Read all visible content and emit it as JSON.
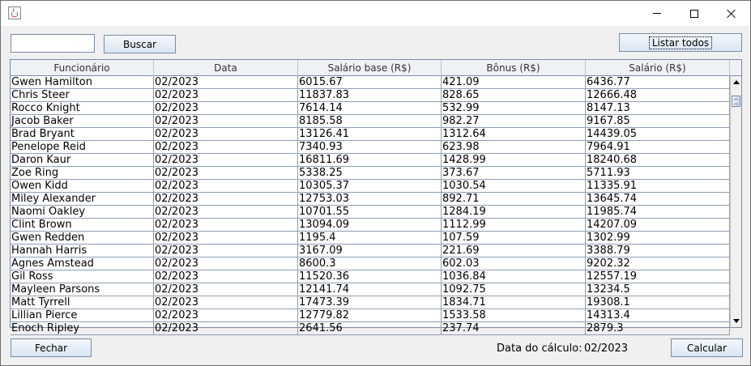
{
  "titlebar": {
    "app_icon": "java-cup-icon",
    "minimize_icon": "minimize-icon",
    "maximize_icon": "maximize-icon",
    "close_icon": "close-icon"
  },
  "toolbar": {
    "search_value": "",
    "search_label": "Buscar",
    "list_all_label": "Listar todos"
  },
  "table": {
    "columns": [
      "Funcionário",
      "Data",
      "Salário base (R$)",
      "Bônus (R$)",
      "Salário (R$)"
    ],
    "rows": [
      [
        "Gwen Hamilton",
        "02/2023",
        "6015.67",
        "421.09",
        "6436.77"
      ],
      [
        "Chris Steer",
        "02/2023",
        "11837.83",
        "828.65",
        "12666.48"
      ],
      [
        "Rocco Knight",
        "02/2023",
        "7614.14",
        "532.99",
        "8147.13"
      ],
      [
        "Jacob Baker",
        "02/2023",
        "8185.58",
        "982.27",
        "9167.85"
      ],
      [
        "Brad Bryant",
        "02/2023",
        "13126.41",
        "1312.64",
        "14439.05"
      ],
      [
        "Penelope Reid",
        "02/2023",
        "7340.93",
        "623.98",
        "7964.91"
      ],
      [
        "Daron Kaur",
        "02/2023",
        "16811.69",
        "1428.99",
        "18240.68"
      ],
      [
        "Zoe Ring",
        "02/2023",
        "5338.25",
        "373.67",
        "5711.93"
      ],
      [
        "Owen Kidd",
        "02/2023",
        "10305.37",
        "1030.54",
        "11335.91"
      ],
      [
        "Miley Alexander",
        "02/2023",
        "12753.03",
        "892.71",
        "13645.74"
      ],
      [
        "Naomi Oakley",
        "02/2023",
        "10701.55",
        "1284.19",
        "11985.74"
      ],
      [
        "Clint Brown",
        "02/2023",
        "13094.09",
        "1112.99",
        "14207.09"
      ],
      [
        "Gwen Redden",
        "02/2023",
        "1195.4",
        "107.59",
        "1302.99"
      ],
      [
        "Hannah Harris",
        "02/2023",
        "3167.09",
        "221.69",
        "3388.79"
      ],
      [
        "Agnes Amstead",
        "02/2023",
        "8600.3",
        "602.03",
        "9202.32"
      ],
      [
        "Gil Ross",
        "02/2023",
        "11520.36",
        "1036.84",
        "12557.19"
      ],
      [
        "Mayleen Parsons",
        "02/2023",
        "12141.74",
        "1092.75",
        "13234.5"
      ],
      [
        "Matt Tyrrell",
        "02/2023",
        "17473.39",
        "1834.71",
        "19308.1"
      ],
      [
        "Lillian Pierce",
        "02/2023",
        "12779.82",
        "1533.58",
        "14313.4"
      ],
      [
        "Enoch Ripley",
        "02/2023",
        "2641.56",
        "237.74",
        "2879.3"
      ]
    ]
  },
  "footer": {
    "close_label": "Fechar",
    "calc_date_label": "Data do cálculo:",
    "calc_date_value": "02/2023",
    "calculate_label": "Calcular"
  }
}
